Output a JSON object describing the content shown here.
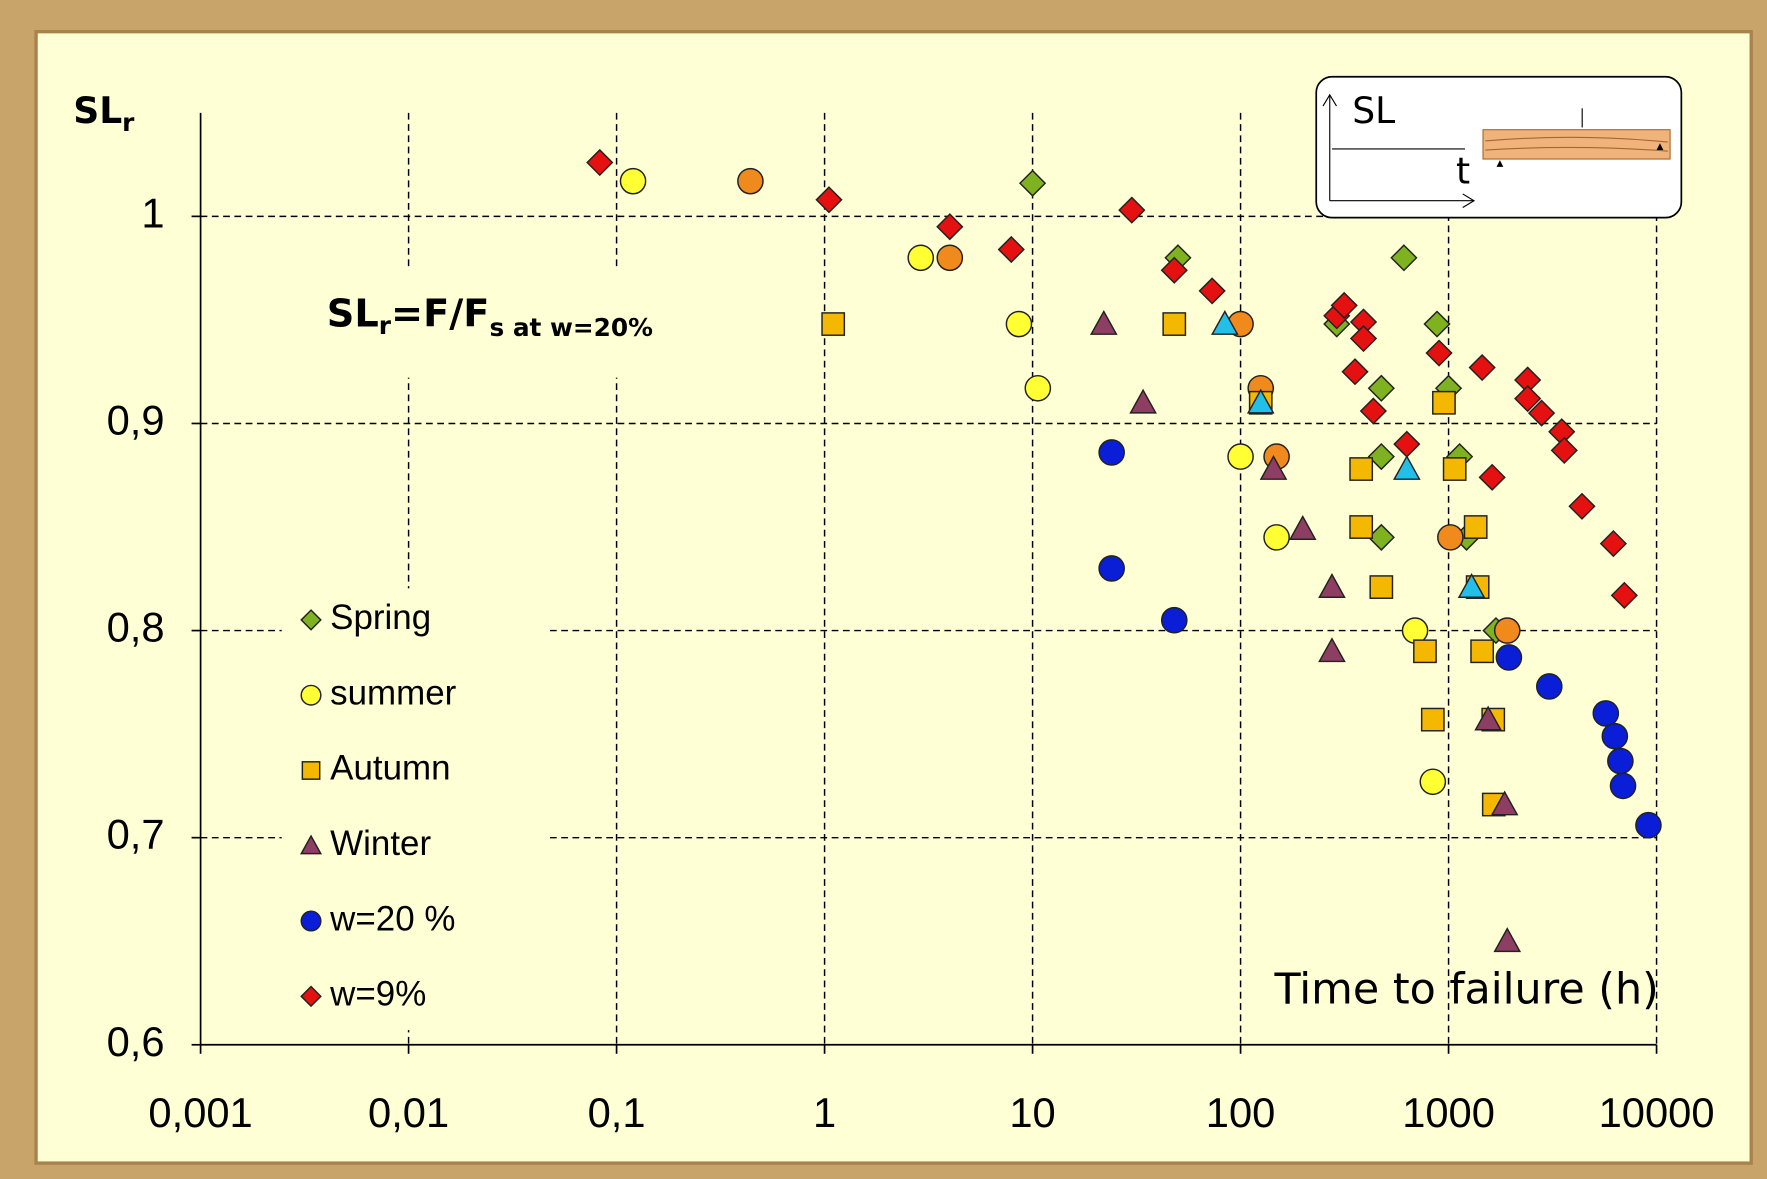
{
  "chart_data": {
    "type": "scatter",
    "x_scale": "log",
    "grid": true,
    "y_label": {
      "main": "SL",
      "sub": "r"
    },
    "x_label": "Time to failure (h)",
    "annotation": [
      "SL",
      "r",
      "=F/F",
      "s at w=20%"
    ],
    "inset_labels": [
      "SL",
      "t"
    ],
    "xlim": [
      0.001,
      10000
    ],
    "ylim": [
      0.6,
      1.05
    ],
    "xticks": [
      {
        "value": 0.001,
        "label": "0,001"
      },
      {
        "value": 0.01,
        "label": "0,01"
      },
      {
        "value": 0.1,
        "label": "0,1"
      },
      1,
      10,
      100,
      1000,
      10000
    ],
    "yticks": [
      {
        "value": 0.6,
        "label": "0,6"
      },
      {
        "value": 0.7,
        "label": "0,7"
      },
      {
        "value": 0.8,
        "label": "0,8"
      },
      {
        "value": 0.9,
        "label": "0,9"
      },
      1
    ],
    "series": [
      {
        "name": "Spring",
        "marker": "diamond",
        "color": "#7fb21f",
        "x": [
          10,
          50,
          610,
          880,
          290,
          475,
          1000,
          475,
          1130,
          475,
          1220,
          1690
        ],
        "values": [
          1.016,
          0.98,
          0.98,
          0.948,
          0.948,
          0.917,
          0.917,
          0.884,
          0.884,
          0.845,
          0.845,
          0.8
        ]
      },
      {
        "name": "summer",
        "marker": "circle",
        "color": "#ffff33",
        "x": [
          0.12,
          2.9,
          8.6,
          10.6,
          100,
          149,
          690,
          840
        ],
        "values": [
          1.017,
          0.98,
          0.948,
          0.917,
          0.884,
          0.845,
          0.8,
          0.727
        ]
      },
      {
        "name": null,
        "marker": "circle",
        "color": "#f08a1c",
        "x": [
          0.44,
          4.0,
          100,
          125,
          149,
          1020,
          1915
        ],
        "values": [
          1.017,
          0.98,
          0.948,
          0.917,
          0.884,
          0.845,
          0.8
        ]
      },
      {
        "name": "Autumn",
        "marker": "square",
        "color": "#f5b800",
        "x": [
          1.1,
          48,
          125,
          380,
          380,
          475,
          950,
          1070,
          1350,
          1380,
          770,
          1450,
          840,
          1640,
          1650
        ],
        "values": [
          0.948,
          0.948,
          0.91,
          0.878,
          0.85,
          0.821,
          0.91,
          0.878,
          0.85,
          0.821,
          0.79,
          0.79,
          0.757,
          0.757,
          0.716
        ]
      },
      {
        "name": "Winter",
        "marker": "triangle",
        "color": "#8e3d63",
        "x": [
          22,
          34,
          144,
          199,
          275,
          275,
          1550,
          1860,
          1915
        ],
        "values": [
          0.948,
          0.91,
          0.878,
          0.849,
          0.821,
          0.79,
          0.757,
          0.716,
          0.65
        ]
      },
      {
        "name": null,
        "marker": "triangle",
        "color": "#22c0e8",
        "x": [
          84,
          125,
          630,
          1290
        ],
        "values": [
          0.948,
          0.91,
          0.878,
          0.821
        ]
      },
      {
        "name": "w=20 %",
        "marker": "circle",
        "color": "#0a1ed8",
        "x": [
          24,
          24,
          48,
          1950,
          3050,
          5700,
          6300,
          6700,
          6900,
          9140
        ],
        "values": [
          0.886,
          0.83,
          0.805,
          0.787,
          0.773,
          0.76,
          0.749,
          0.737,
          0.725,
          0.706
        ]
      },
      {
        "name": "w=9%",
        "marker": "diamond",
        "color": "#e51010",
        "x": [
          0.083,
          1.05,
          4.0,
          7.9,
          30,
          48,
          73,
          290,
          315,
          390,
          390,
          355,
          435,
          630,
          900,
          1450,
          1620,
          2400,
          2400,
          2800,
          3500,
          3600,
          4380,
          6200,
          7000
        ],
        "values": [
          1.026,
          1.008,
          0.995,
          0.984,
          1.003,
          0.974,
          0.964,
          0.952,
          0.957,
          0.949,
          0.941,
          0.925,
          0.906,
          0.89,
          0.934,
          0.927,
          0.874,
          0.921,
          0.912,
          0.905,
          0.896,
          0.887,
          0.86,
          0.842,
          0.817
        ]
      }
    ]
  }
}
